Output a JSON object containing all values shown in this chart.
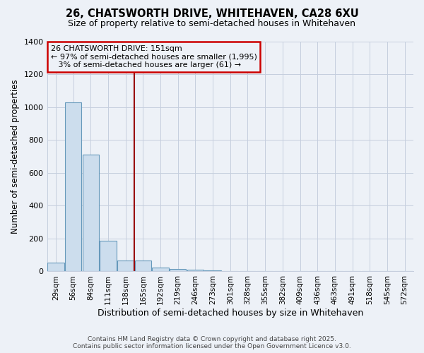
{
  "title1": "26, CHATSWORTH DRIVE, WHITEHAVEN, CA28 6XU",
  "title2": "Size of property relative to semi-detached houses in Whitehaven",
  "xlabel": "Distribution of semi-detached houses by size in Whitehaven",
  "ylabel": "Number of semi-detached properties",
  "categories": [
    "29sqm",
    "56sqm",
    "84sqm",
    "111sqm",
    "138sqm",
    "165sqm",
    "192sqm",
    "219sqm",
    "246sqm",
    "273sqm",
    "301sqm",
    "328sqm",
    "355sqm",
    "382sqm",
    "409sqm",
    "436sqm",
    "463sqm",
    "491sqm",
    "518sqm",
    "545sqm",
    "572sqm"
  ],
  "values": [
    55,
    1030,
    710,
    185,
    65,
    65,
    25,
    15,
    10,
    5,
    0,
    0,
    0,
    0,
    0,
    0,
    0,
    0,
    0,
    0,
    0
  ],
  "bar_color": "#ccdded",
  "bar_edge_color": "#6699bb",
  "property_index": 5,
  "property_label": "26 CHATSWORTH DRIVE: 151sqm",
  "smaller_pct": "97% of semi-detached houses are smaller (1,995)",
  "larger_pct": "3% of semi-detached houses are larger (61)",
  "vline_color": "#990000",
  "bg_color": "#edf1f7",
  "grid_color": "#c5cede",
  "annotation_box_color": "#cc0000",
  "ylim": [
    0,
    1400
  ],
  "yticks": [
    0,
    200,
    400,
    600,
    800,
    1000,
    1200,
    1400
  ],
  "footer1": "Contains HM Land Registry data © Crown copyright and database right 2025.",
  "footer2": "Contains public sector information licensed under the Open Government Licence v3.0."
}
